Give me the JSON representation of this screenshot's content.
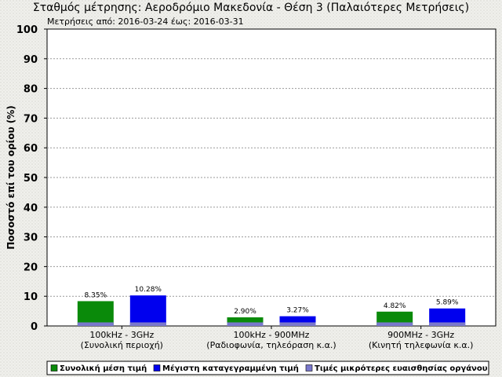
{
  "chart_data": {
    "type": "bar",
    "title": "Σταθμός μέτρησης: Αεροδρόμιο Μακεδονία - Θέση 3 (Παλαιότερες Μετρήσεις)",
    "subtitle": "Μετρήσεις από: 2016-03-24 έως: 2016-03-31",
    "ylabel": "Ποσοστό επί του ορίου (%)",
    "xlabel": "",
    "ylim": [
      0,
      100
    ],
    "yticks": [
      0,
      10,
      20,
      30,
      40,
      50,
      60,
      70,
      80,
      90,
      100
    ],
    "grid": true,
    "legend_position": "bottom",
    "categories": [
      {
        "line1": "100kHz - 3GHz",
        "line2": "(Συνολική περιοχή)"
      },
      {
        "line1": "100kHz - 900MHz",
        "line2": "(Ραδιοφωνία, τηλεόραση κ.α.)"
      },
      {
        "line1": "900MHz - 3GHz",
        "line2": "(Κινητή τηλεφωνία κ.α.)"
      }
    ],
    "series": [
      {
        "name": "Συνολική μέση τιμή",
        "color": "#0a8a0a",
        "values": [
          8.35,
          2.9,
          4.82
        ],
        "labels": [
          "8.35%",
          "2.90%",
          "4.82%"
        ]
      },
      {
        "name": "Μέγιστη καταγεγραμμένη τιμή",
        "color": "#0000ee",
        "values": [
          10.28,
          3.27,
          5.89
        ],
        "labels": [
          "10.28%",
          "3.27%",
          "5.89%"
        ]
      }
    ],
    "sensitivity": {
      "name": "Τιμές μικρότερες ευαισθησίας οργάνου",
      "color": "#7a78cc",
      "value": 1.2
    }
  }
}
